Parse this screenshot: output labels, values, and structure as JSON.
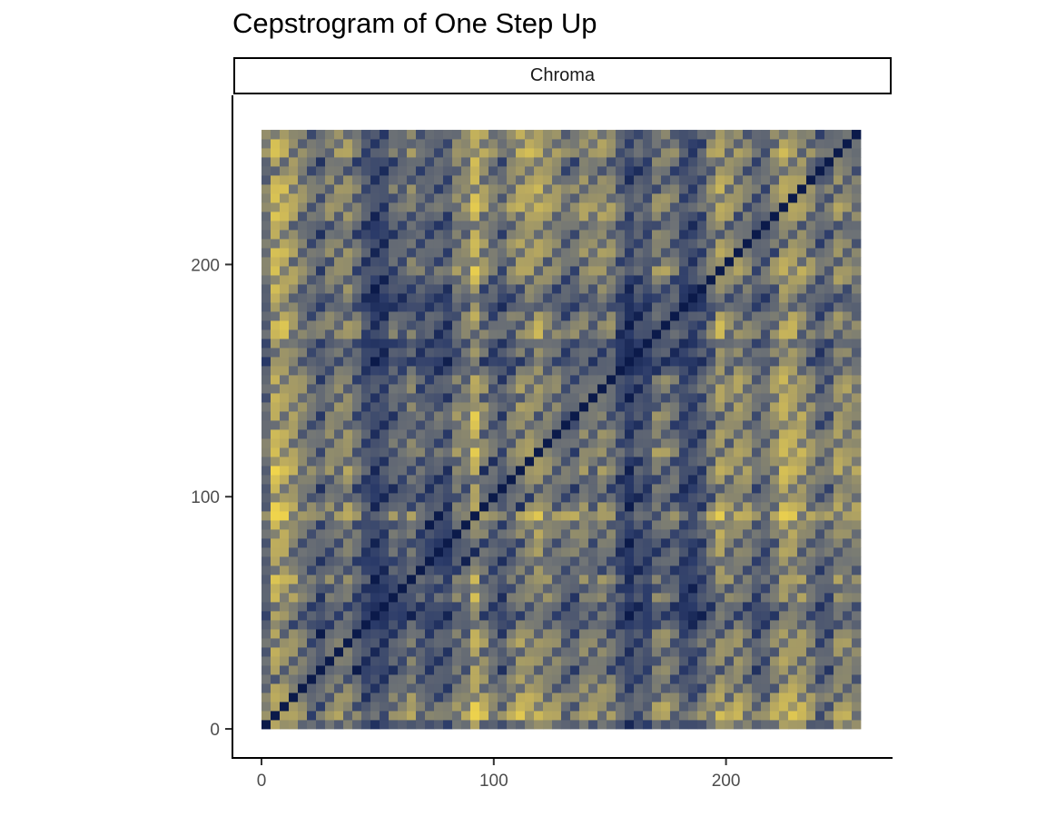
{
  "chart_data": {
    "type": "heatmap",
    "title": "Cepstrogram of One Step Up",
    "facet": "Chroma",
    "xlabel": "",
    "ylabel": "",
    "x_range": [
      0,
      258
    ],
    "y_range": [
      0,
      258
    ],
    "n_frames": 258,
    "x_ticks": [
      {
        "value": 0,
        "label": "0"
      },
      {
        "value": 100,
        "label": "100"
      },
      {
        "value": 200,
        "label": "200"
      }
    ],
    "y_ticks": [
      {
        "value": 0,
        "label": "0"
      },
      {
        "value": 100,
        "label": "100"
      },
      {
        "value": 200,
        "label": "200"
      }
    ],
    "diagonal": "zero distance along x = y",
    "grid": false,
    "legend": "none",
    "colorscale": {
      "low": "#0b1a4a",
      "mid_low": "#2c3c6a",
      "mid": "#707476",
      "mid_high": "#b9a95f",
      "high": "#f5d84a"
    }
  }
}
